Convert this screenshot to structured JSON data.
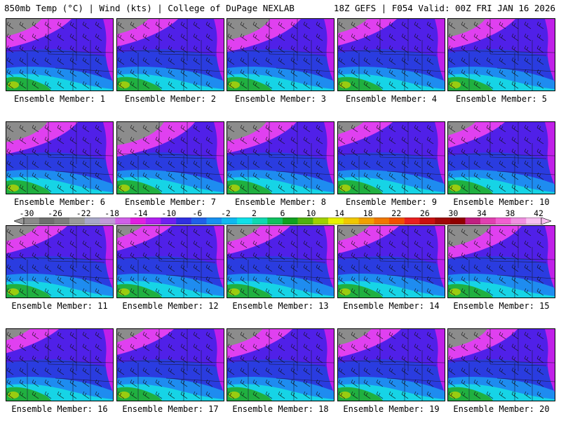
{
  "header": {
    "left": "850mb Temp (°C) | Wind (kts) | College of DuPage NEXLAB",
    "right": "18Z GEFS | F054 Valid: 00Z FRI JAN 16 2026"
  },
  "members": [
    {
      "label": "Ensemble Member: 1",
      "cold_extent": 0.55
    },
    {
      "label": "Ensemble Member: 2",
      "cold_extent": 0.45
    },
    {
      "label": "Ensemble Member: 3",
      "cold_extent": 0.75
    },
    {
      "label": "Ensemble Member: 4",
      "cold_extent": 0.4
    },
    {
      "label": "Ensemble Member: 5",
      "cold_extent": 0.6
    },
    {
      "label": "Ensemble Member: 6",
      "cold_extent": 0.7
    },
    {
      "label": "Ensemble Member: 7",
      "cold_extent": 0.85
    },
    {
      "label": "Ensemble Member: 8",
      "cold_extent": 0.65
    },
    {
      "label": "Ensemble Member: 9",
      "cold_extent": 0.3
    },
    {
      "label": "Ensemble Member: 10",
      "cold_extent": 0.35
    },
    {
      "label": "Ensemble Member: 11",
      "cold_extent": 0.45
    },
    {
      "label": "Ensemble Member: 12",
      "cold_extent": 0.3
    },
    {
      "label": "Ensemble Member: 13",
      "cold_extent": 0.5
    },
    {
      "label": "Ensemble Member: 14",
      "cold_extent": 0.45
    },
    {
      "label": "Ensemble Member: 15",
      "cold_extent": 0.75
    },
    {
      "label": "Ensemble Member: 16",
      "cold_extent": 0.25
    },
    {
      "label": "Ensemble Member: 17",
      "cold_extent": 0.35
    },
    {
      "label": "Ensemble Member: 18",
      "cold_extent": 0.55
    },
    {
      "label": "Ensemble Member: 19",
      "cold_extent": 0.5
    },
    {
      "label": "Ensemble Member: 20",
      "cold_extent": 0.65
    }
  ],
  "colorbar": {
    "labels": [
      "-30",
      "-26",
      "-22",
      "-18",
      "-14",
      "-10",
      "-6",
      "-2",
      "2",
      "6",
      "10",
      "14",
      "18",
      "22",
      "26",
      "30",
      "34",
      "38",
      "42"
    ],
    "colors": [
      "#8a8a8a",
      "#6e6e6e",
      "#7d7d7d",
      "#9a9a9a",
      "#a8a8c8",
      "#c09ad8",
      "#d060e8",
      "#e020e0",
      "#b020f0",
      "#7020f0",
      "#3030e0",
      "#2060e8",
      "#1890f0",
      "#10b8f0",
      "#10e0e8",
      "#10d8b0",
      "#10c060",
      "#10a020",
      "#50b010",
      "#a0d000",
      "#e8f000",
      "#f0c800",
      "#f0a000",
      "#f07800",
      "#f05000",
      "#e82020",
      "#c81010",
      "#a00808",
      "#900000",
      "#c02080",
      "#e040b0",
      "#f060d0",
      "#f090e0",
      "#f8c0f0"
    ]
  }
}
